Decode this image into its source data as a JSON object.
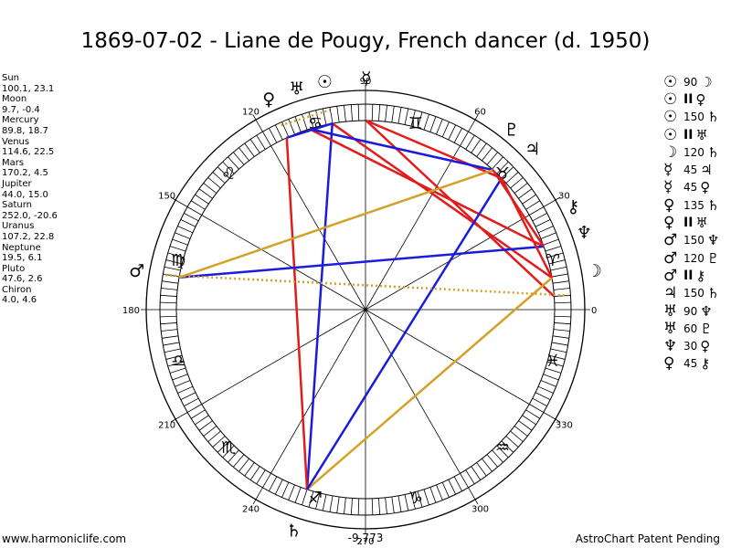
{
  "title": "1869-07-02 - Liane de Pougy, French dancer (d. 1950)",
  "planets": [
    {
      "name": "Sun",
      "values": "100.1, 23.1",
      "lon": 100.1,
      "glyph": "☉",
      "color": "#000000"
    },
    {
      "name": "Moon",
      "values": "9.7, -0.4",
      "lon": 9.7,
      "glyph": "☽",
      "color": "#000000"
    },
    {
      "name": "Mercury",
      "values": "89.8, 18.7",
      "lon": 89.8,
      "glyph": "☿",
      "color": "#000000"
    },
    {
      "name": "Venus",
      "values": "114.6, 22.5",
      "lon": 114.6,
      "glyph": "♀",
      "color": "#000000"
    },
    {
      "name": "Mars",
      "values": "170.2, 4.5",
      "lon": 170.2,
      "glyph": "♂",
      "color": "#000000"
    },
    {
      "name": "Jupiter",
      "values": "44.0, 15.0",
      "lon": 44.0,
      "glyph": "♃",
      "color": "#000000"
    },
    {
      "name": "Saturn",
      "values": "252.0, -20.6",
      "lon": 252.0,
      "glyph": "♄",
      "color": "#000000"
    },
    {
      "name": "Uranus",
      "values": "107.2, 22.8",
      "lon": 107.2,
      "glyph": "♅",
      "color": "#000000"
    },
    {
      "name": "Neptune",
      "values": "19.5, 6.1",
      "lon": 19.5,
      "glyph": "♆",
      "color": "#000000"
    },
    {
      "name": "Pluto",
      "values": "47.6, 2.6",
      "lon": 47.6,
      "glyph": "♇",
      "color": "#000000"
    },
    {
      "name": "Chiron",
      "values": "4.0, 4.6",
      "lon": 4.0,
      "glyph": "⚷",
      "color": "#000000"
    }
  ],
  "aspects": [
    {
      "p1": "☉",
      "angle": "90",
      "p2": "☽"
    },
    {
      "p1": "☉",
      "angle": "II",
      "p2": "♀"
    },
    {
      "p1": "☉",
      "angle": "150",
      "p2": "♄"
    },
    {
      "p1": "☉",
      "angle": "II",
      "p2": "♅"
    },
    {
      "p1": "☽",
      "angle": "120",
      "p2": "♄"
    },
    {
      "p1": "☿",
      "angle": "45",
      "p2": "♃"
    },
    {
      "p1": "☿",
      "angle": "45",
      "p2": "♀"
    },
    {
      "p1": "♀",
      "angle": "135",
      "p2": "♄"
    },
    {
      "p1": "♀",
      "angle": "II",
      "p2": "♅"
    },
    {
      "p1": "♂",
      "angle": "150",
      "p2": "♆"
    },
    {
      "p1": "♂",
      "angle": "120",
      "p2": "♇"
    },
    {
      "p1": "♂",
      "angle": "II",
      "p2": "⚷"
    },
    {
      "p1": "♃",
      "angle": "150",
      "p2": "♄"
    },
    {
      "p1": "♅",
      "angle": "90",
      "p2": "♆"
    },
    {
      "p1": "♅",
      "angle": "60",
      "p2": "♇"
    },
    {
      "p1": "♆",
      "angle": "30",
      "p2": "♀"
    },
    {
      "p1": "♀",
      "angle": "45",
      "p2": "⚷"
    }
  ],
  "degree_labels": [
    "0",
    "30",
    "60",
    "90",
    "120",
    "150",
    "180",
    "210",
    "240",
    "270",
    "300",
    "330"
  ],
  "zodiac_glyphs": [
    "♈",
    "♉",
    "♊",
    "♋",
    "♌",
    "♍",
    "♎",
    "♏",
    "♐",
    "♑",
    "♒",
    "♓"
  ],
  "bottom_value": "-9,773",
  "aspect_lines": [
    {
      "a": 100.1,
      "b": 9.7,
      "color": "#e21b1b"
    },
    {
      "a": 100.1,
      "b": 252.0,
      "color": "#1b1bdd"
    },
    {
      "a": 100.1,
      "b": 114.6,
      "color": "#1b1bdd"
    },
    {
      "a": 89.8,
      "b": 44.0,
      "color": "#e21b1b"
    },
    {
      "a": 89.8,
      "b": 4.0,
      "color": "#e21b1b"
    },
    {
      "a": 114.6,
      "b": 252.0,
      "color": "#e21b1b"
    },
    {
      "a": 107.2,
      "b": 19.5,
      "color": "#e21b1b"
    },
    {
      "a": 107.2,
      "b": 47.6,
      "color": "#1b1bdd"
    },
    {
      "a": 170.2,
      "b": 19.5,
      "color": "#1b1bdd"
    },
    {
      "a": 170.2,
      "b": 47.6,
      "color": "#d4a127"
    },
    {
      "a": 9.7,
      "b": 252.0,
      "color": "#d4a127"
    },
    {
      "a": 44.0,
      "b": 252.0,
      "color": "#1b1bdd"
    },
    {
      "a": 44.0,
      "b": 9.7,
      "color": "#e21b1b"
    },
    {
      "a": 19.5,
      "b": 47.6,
      "color": "#e21b1b"
    }
  ],
  "parallel_lines": [
    {
      "a": 114.6,
      "b": 100.1,
      "color": "#d4a127"
    },
    {
      "a": 170.2,
      "b": 4.0,
      "color": "#d4a127"
    }
  ],
  "footer_left": "www.harmoniclife.com",
  "footer_right": "AstroChart Patent Pending"
}
